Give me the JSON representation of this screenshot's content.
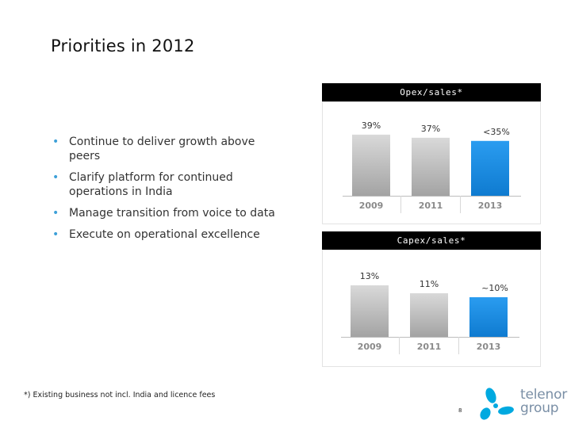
{
  "slide": {
    "title": "Priorities in 2012",
    "bullets": [
      "Continue to deliver growth above peers",
      "Clarify platform for continued operations in India",
      "Manage transition from voice to data",
      "Execute on operational excellence"
    ],
    "footnote": "*) Existing business not incl. India and licence fees",
    "page_number": "8",
    "logo": {
      "line1": "telenor",
      "line2": "group",
      "accent": "#00a9e0",
      "text_color": "#7a8fa6"
    }
  },
  "colors": {
    "historic_bar": "#b9b9b9",
    "target_bar": "#1a8fe3",
    "bullet": "#3da0d8"
  },
  "chart_data": [
    {
      "type": "bar",
      "title": "Opex/sales*",
      "categories": [
        "2009",
        "2011",
        "2013"
      ],
      "values": [
        39,
        37,
        35
      ],
      "value_labels": [
        "39%",
        "37%",
        "<35%"
      ],
      "highlight_index": 2,
      "ylim": [
        0,
        45
      ],
      "grid": false
    },
    {
      "type": "bar",
      "title": "Capex/sales*",
      "categories": [
        "2009",
        "2011",
        "2013"
      ],
      "values": [
        13,
        11,
        10
      ],
      "value_labels": [
        "13%",
        "11%",
        "~10%"
      ],
      "highlight_index": 2,
      "ylim": [
        0,
        15
      ],
      "grid": false
    }
  ]
}
